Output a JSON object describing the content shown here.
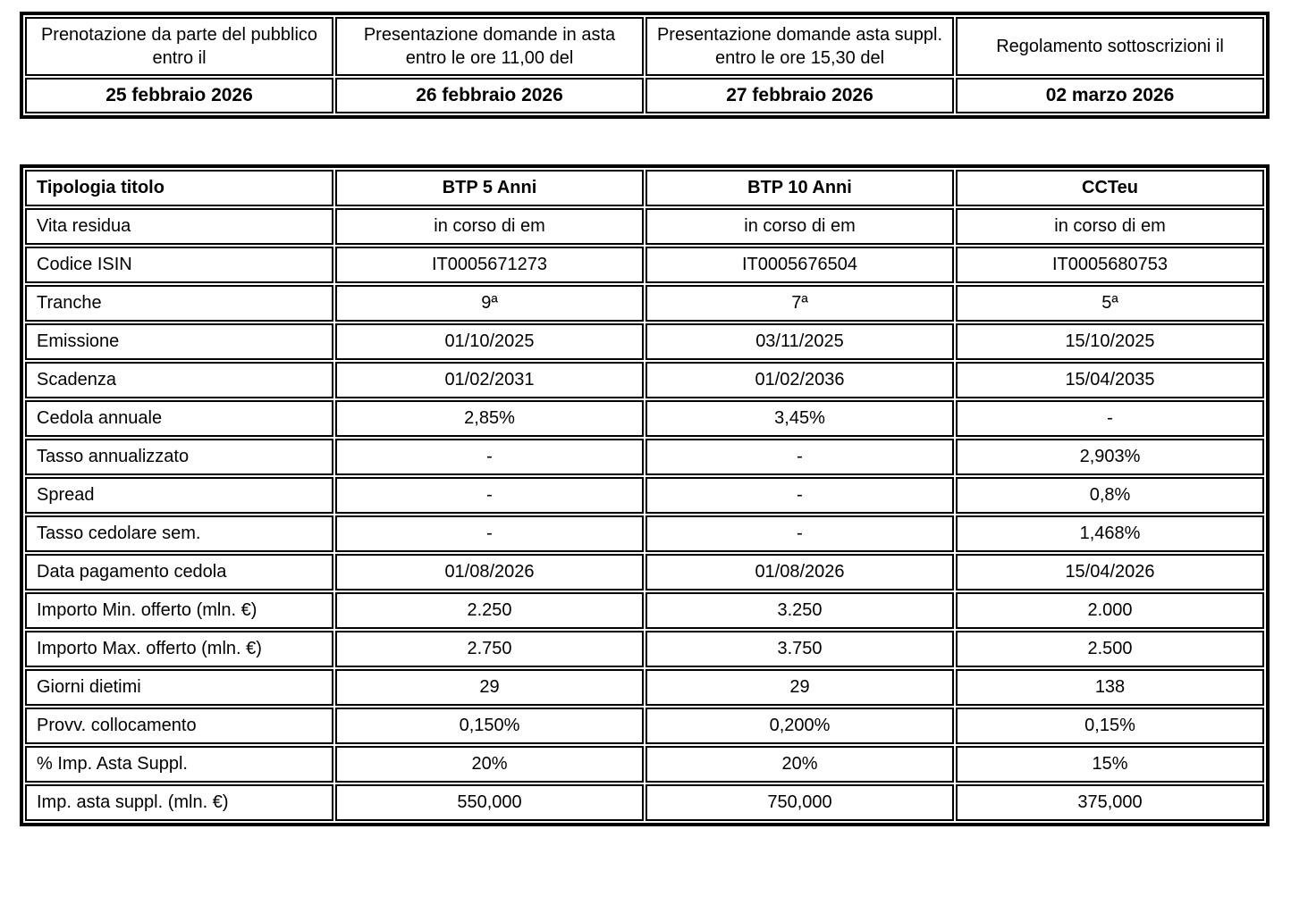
{
  "schedule_table": {
    "columns": [
      {
        "header": "Prenotazione da parte del pubblico entro il",
        "date": "25 febbraio 2026"
      },
      {
        "header": "Presentazione domande in asta entro le ore 11,00 del",
        "date": "26 febbraio 2026"
      },
      {
        "header": "Presentazione domande asta suppl. entro le ore 15,30 del",
        "date": "27 febbraio 2026"
      },
      {
        "header": "Regolamento sottoscrizioni il",
        "date": "02 marzo 2026"
      }
    ]
  },
  "details_table": {
    "header": {
      "label": "Tipologia titolo",
      "columns": [
        "BTP 5 Anni",
        "BTP 10 Anni",
        "CCTeu"
      ]
    },
    "rows": [
      {
        "label": "Vita residua",
        "values": [
          "in corso di em",
          "in corso di em",
          "in corso di em"
        ]
      },
      {
        "label": "Codice ISIN",
        "values": [
          "IT0005671273",
          "IT0005676504",
          "IT0005680753"
        ]
      },
      {
        "label": "Tranche",
        "values": [
          "9ª",
          "7ª",
          "5ª"
        ]
      },
      {
        "label": "Emissione",
        "values": [
          "01/10/2025",
          "03/11/2025",
          "15/10/2025"
        ]
      },
      {
        "label": "Scadenza",
        "values": [
          "01/02/2031",
          "01/02/2036",
          "15/04/2035"
        ]
      },
      {
        "label": "Cedola annuale",
        "values": [
          "2,85%",
          "3,45%",
          "-"
        ]
      },
      {
        "label": "Tasso annualizzato",
        "values": [
          "-",
          "-",
          "2,903%"
        ]
      },
      {
        "label": "Spread",
        "values": [
          "-",
          "-",
          "0,8%"
        ]
      },
      {
        "label": "Tasso cedolare sem.",
        "values": [
          "-",
          "-",
          "1,468%"
        ]
      },
      {
        "label": "Data pagamento cedola",
        "values": [
          "01/08/2026",
          "01/08/2026",
          "15/04/2026"
        ]
      },
      {
        "label": "Importo Min. offerto (mln. €)",
        "values": [
          "2.250",
          "3.250",
          "2.000"
        ]
      },
      {
        "label": "Importo Max. offerto (mln. €)",
        "values": [
          "2.750",
          "3.750",
          "2.500"
        ]
      },
      {
        "label": "Giorni dietimi",
        "values": [
          "29",
          "29",
          "138"
        ]
      },
      {
        "label": "Provv. collocamento",
        "values": [
          "0,150%",
          "0,200%",
          "0,15%"
        ]
      },
      {
        "label": "% Imp. Asta Suppl.",
        "values": [
          "20%",
          "20%",
          "15%"
        ]
      },
      {
        "label": "Imp. asta suppl. (mln. €)",
        "values": [
          "550,000",
          "750,000",
          "375,000"
        ]
      }
    ]
  }
}
